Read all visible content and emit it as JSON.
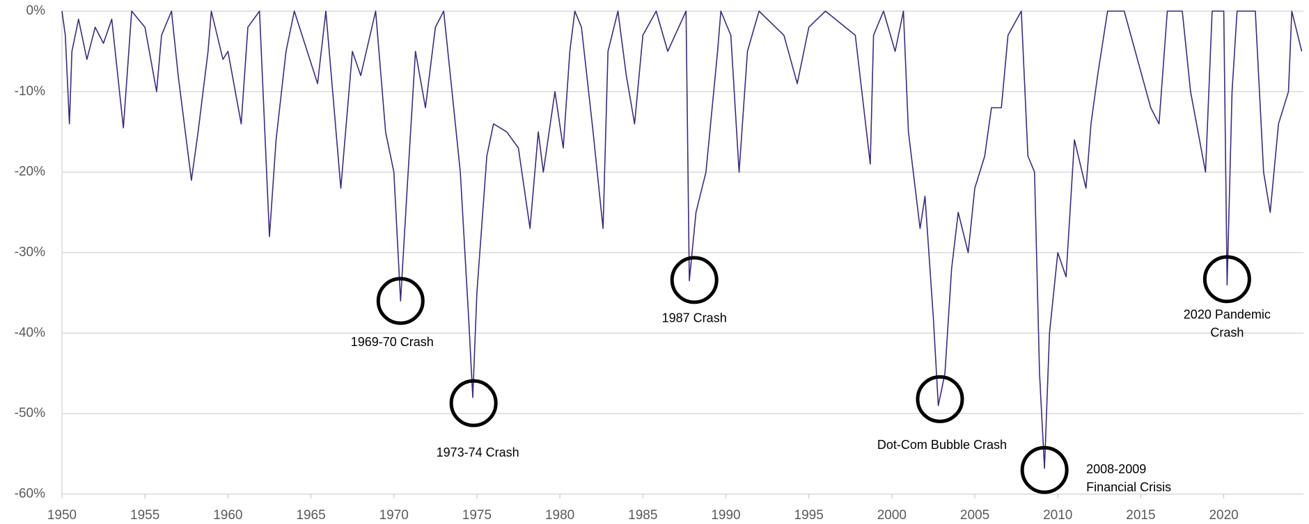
{
  "chart_data": {
    "type": "line",
    "x": [
      1950.0,
      1950.2,
      1950.45,
      1950.6,
      1951.0,
      1951.5,
      1952.0,
      1952.5,
      1953.0,
      1953.7,
      1954.2,
      1955.0,
      1955.7,
      1956.0,
      1956.6,
      1957.0,
      1957.8,
      1958.2,
      1958.8,
      1959.0,
      1959.7,
      1960.0,
      1960.8,
      1961.2,
      1961.9,
      1962.5,
      1962.9,
      1963.5,
      1964.0,
      1965.4,
      1965.9,
      1966.8,
      1967.5,
      1968.0,
      1968.9,
      1969.5,
      1970.0,
      1970.4,
      1970.8,
      1971.3,
      1971.9,
      1972.5,
      1973.0,
      1973.6,
      1974.0,
      1974.5,
      1974.75,
      1975.0,
      1975.6,
      1976.0,
      1976.8,
      1977.5,
      1978.2,
      1978.7,
      1979.0,
      1979.7,
      1980.2,
      1980.6,
      1980.9,
      1981.3,
      1982.0,
      1982.6,
      1982.9,
      1983.5,
      1984.0,
      1984.5,
      1985.0,
      1985.8,
      1986.5,
      1987.6,
      1987.8,
      1988.2,
      1988.8,
      1989.5,
      1989.7,
      1990.3,
      1990.8,
      1991.3,
      1992.0,
      1993.5,
      1994.3,
      1995.0,
      1996.0,
      1997.8,
      1998.7,
      1998.9,
      1999.5,
      2000.2,
      2000.7,
      2001.0,
      2001.7,
      2002.0,
      2002.5,
      2002.8,
      2003.2,
      2003.6,
      2004.0,
      2004.6,
      2005.0,
      2005.6,
      2006.0,
      2006.6,
      2007.0,
      2007.8,
      2008.2,
      2008.6,
      2008.9,
      2009.2,
      2009.5,
      2010.0,
      2010.5,
      2011.0,
      2011.7,
      2012.0,
      2012.4,
      2013.0,
      2014.0,
      2015.6,
      2016.1,
      2016.6,
      2017.5,
      2018.0,
      2018.9,
      2019.3,
      2020.0,
      2020.2,
      2020.5,
      2020.8,
      2021.9,
      2022.4,
      2022.8,
      2023.3,
      2023.9,
      2024.1,
      2024.7
    ],
    "series": [
      {
        "color": "#3d2a7a",
        "values": [
          0,
          -3,
          -14,
          -5,
          -1,
          -6,
          -2,
          -4,
          -1,
          -14.5,
          0,
          -2,
          -10,
          -3,
          0,
          -8,
          -21,
          -15,
          -5,
          0,
          -6,
          -5,
          -14,
          -2,
          0,
          -28,
          -16,
          -5,
          0,
          -9,
          0,
          -22,
          -5,
          -8,
          0,
          -15,
          -20,
          -36,
          -22,
          -5,
          -12,
          -2,
          0,
          -12,
          -20,
          -38,
          -48,
          -35,
          -18,
          -14,
          -15,
          -17,
          -27,
          -15,
          -20,
          -10,
          -17,
          -5,
          0,
          -2,
          -15,
          -27,
          -5,
          0,
          -8,
          -14,
          -3,
          0,
          -5,
          0,
          -33.5,
          -25,
          -20,
          -5,
          0,
          -3,
          -20,
          -5,
          0,
          -3,
          -9,
          -2,
          0,
          -3,
          -19,
          -3,
          0,
          -5,
          0,
          -15,
          -27,
          -23,
          -38,
          -49,
          -45,
          -32,
          -25,
          -30,
          -22,
          -18,
          -12,
          -12,
          -3,
          0,
          -18,
          -20,
          -45,
          -56.8,
          -40,
          -30,
          -33,
          -16,
          -22,
          -14,
          -8,
          0,
          0,
          -12,
          -14,
          0,
          0,
          -10,
          -20,
          0,
          0,
          -34,
          -10,
          0,
          0,
          -20,
          -25,
          -14,
          -10,
          0,
          -5
        ]
      }
    ],
    "xlim": [
      1950,
      2024.8
    ],
    "xticks": [
      1950,
      1955,
      1960,
      1965,
      1970,
      1975,
      1980,
      1985,
      1990,
      1995,
      2000,
      2005,
      2010,
      2015,
      2020
    ],
    "ylim": [
      -60,
      0
    ],
    "yticks": [
      {
        "value": 0,
        "label": "0%"
      },
      {
        "value": -10,
        "label": "-10%"
      },
      {
        "value": -20,
        "label": "-20%"
      },
      {
        "value": -30,
        "label": "-30%"
      },
      {
        "value": -40,
        "label": "-40%"
      },
      {
        "value": -50,
        "label": "-50%"
      },
      {
        "value": -60,
        "label": "-60%"
      }
    ],
    "grid": true,
    "annotations": [
      {
        "lines": [
          "1969-70 Crash"
        ],
        "x": 1970.4,
        "y": -36
      },
      {
        "lines": [
          "1973-74 Crash"
        ],
        "x": 1974.8,
        "y": -48.7
      },
      {
        "lines": [
          "1987 Crash"
        ],
        "x": 1988.1,
        "y": -33.4
      },
      {
        "lines": [
          "Dot-Com Bubble Crash"
        ],
        "x": 2002.9,
        "y": -48.2
      },
      {
        "lines": [
          "2008-2009",
          "Financial Crisis"
        ],
        "x": 2009.2,
        "y": -57
      },
      {
        "lines": [
          "2020 Pandemic",
          "Crash"
        ],
        "x": 2020.2,
        "y": -33.3
      }
    ]
  }
}
